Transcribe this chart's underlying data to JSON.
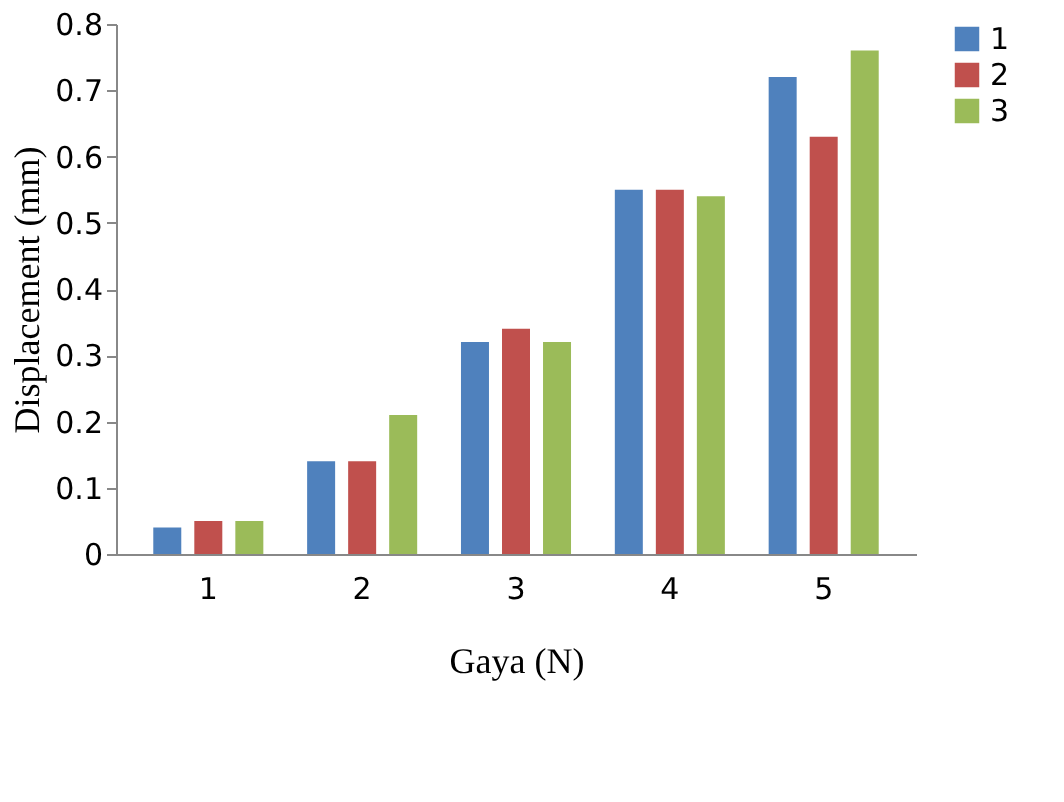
{
  "chart_data": {
    "type": "bar",
    "xlabel": "Gaya (N)",
    "ylabel": "Displacement (mm)",
    "categories": [
      "1",
      "2",
      "3",
      "4",
      "5"
    ],
    "series": [
      {
        "name": "1",
        "color": "#4f81bd",
        "values": [
          0.04,
          0.14,
          0.32,
          0.55,
          0.72
        ]
      },
      {
        "name": "2",
        "color": "#c0504d",
        "values": [
          0.05,
          0.14,
          0.34,
          0.55,
          0.63
        ]
      },
      {
        "name": "3",
        "color": "#9bbb59",
        "values": [
          0.05,
          0.21,
          0.32,
          0.54,
          0.76
        ]
      }
    ],
    "ylim": [
      0,
      0.8
    ],
    "yticks": [
      0,
      0.1,
      0.2,
      0.3,
      0.4,
      0.5,
      0.6,
      0.7,
      0.8
    ],
    "grid": false,
    "legend": "right"
  }
}
